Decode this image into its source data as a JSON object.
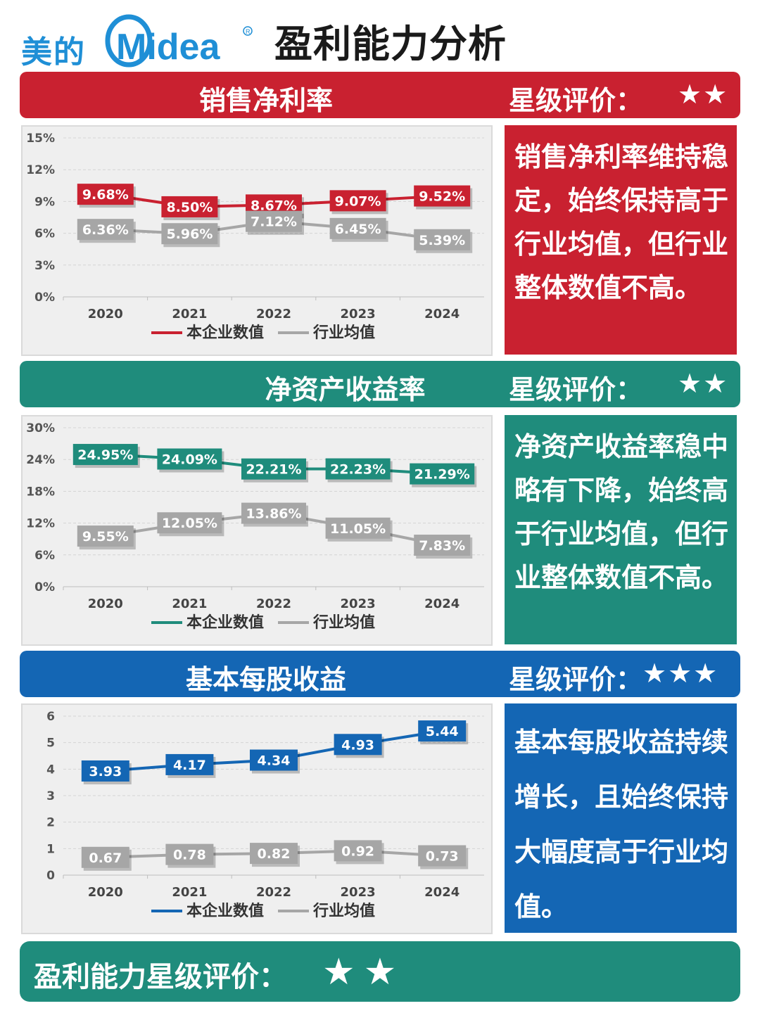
{
  "header": {
    "brand_cn": "美的",
    "brand_en": "Midea",
    "title": "盈利能力分析"
  },
  "colors": {
    "red": "#c92130",
    "teal": "#1f8c7c",
    "blue": "#1466b4",
    "gray": "#a6a6a6"
  },
  "sections": [
    {
      "metric": "销售净利率",
      "rating_label": "星级评价：",
      "stars": "★★",
      "note": "销售净利率维持稳定，始终保持高于行业均值，但行业整体数值不高。"
    },
    {
      "metric": "净资产收益率",
      "rating_label": "星级评价：",
      "stars": "★★",
      "note": "净资产收益率稳中略有下降，始终高于行业均值，但行业整体数值不高。"
    },
    {
      "metric": "基本每股收益",
      "rating_label": "星级评价：",
      "stars": "★★★",
      "note": "基本每股收益持续增长，且始终保持大幅度高于行业均值。"
    }
  ],
  "summary": {
    "label": "盈利能力星级评价：",
    "stars": "★★"
  },
  "chart_data": [
    {
      "type": "line",
      "categories": [
        "2020",
        "2021",
        "2022",
        "2023",
        "2024"
      ],
      "ylim": [
        0,
        15
      ],
      "yticks": [
        "0%",
        "3%",
        "6%",
        "9%",
        "12%",
        "15%"
      ],
      "series": [
        {
          "name": "本企业数值",
          "values": [
            9.68,
            8.5,
            8.67,
            9.07,
            9.52
          ],
          "labels": [
            "9.68%",
            "8.50%",
            "8.67%",
            "9.07%",
            "9.52%"
          ],
          "color": "#c92130"
        },
        {
          "name": "行业均值",
          "values": [
            6.36,
            5.96,
            7.12,
            6.45,
            5.39
          ],
          "labels": [
            "6.36%",
            "5.96%",
            "7.12%",
            "6.45%",
            "5.39%"
          ],
          "color": "#a6a6a6"
        }
      ],
      "legend": "bottom"
    },
    {
      "type": "line",
      "categories": [
        "2020",
        "2021",
        "2022",
        "2023",
        "2024"
      ],
      "ylim": [
        0,
        30
      ],
      "yticks": [
        "0%",
        "6%",
        "12%",
        "18%",
        "24%",
        "30%"
      ],
      "series": [
        {
          "name": "本企业数值",
          "values": [
            24.95,
            24.09,
            22.21,
            22.23,
            21.29
          ],
          "labels": [
            "24.95%",
            "24.09%",
            "22.21%",
            "22.23%",
            "21.29%"
          ],
          "color": "#1f8c7c"
        },
        {
          "name": "行业均值",
          "values": [
            9.55,
            12.05,
            13.86,
            11.05,
            7.83
          ],
          "labels": [
            "9.55%",
            "12.05%",
            "13.86%",
            "11.05%",
            "7.83%"
          ],
          "color": "#a6a6a6"
        }
      ],
      "legend": "bottom"
    },
    {
      "type": "line",
      "categories": [
        "2020",
        "2021",
        "2022",
        "2023",
        "2024"
      ],
      "ylim": [
        0,
        6
      ],
      "yticks": [
        "0",
        "1",
        "2",
        "3",
        "4",
        "5",
        "6"
      ],
      "series": [
        {
          "name": "本企业数值",
          "values": [
            3.93,
            4.17,
            4.34,
            4.93,
            5.44
          ],
          "labels": [
            "3.93",
            "4.17",
            "4.34",
            "4.93",
            "5.44"
          ],
          "color": "#1466b4"
        },
        {
          "name": "行业均值",
          "values": [
            0.67,
            0.78,
            0.82,
            0.92,
            0.73
          ],
          "labels": [
            "0.67",
            "0.78",
            "0.82",
            "0.92",
            "0.73"
          ],
          "color": "#a6a6a6"
        }
      ],
      "legend": "bottom"
    }
  ]
}
